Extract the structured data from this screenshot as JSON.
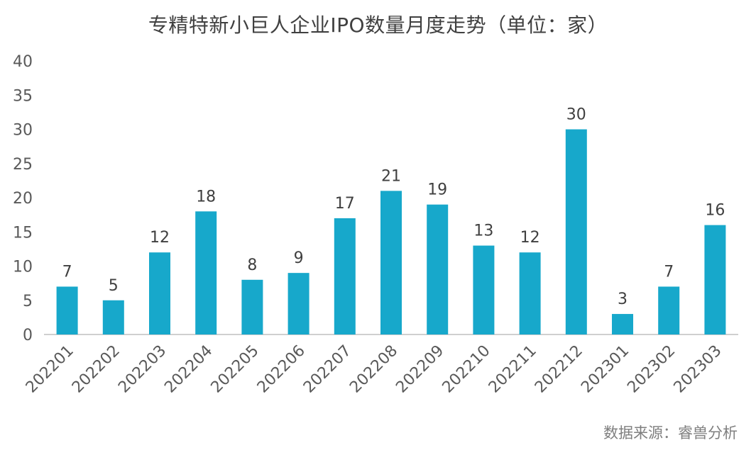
{
  "title": "专精特新小巨人企业IPO数量月度走势（单位：家）",
  "source": "数据来源：睿兽分析",
  "colors": {
    "bar": "#17a8cb",
    "axis": "#bfbfbf",
    "text": "#404040"
  },
  "chart_data": {
    "type": "bar",
    "title": "专精特新小巨人企业IPO数量月度走势（单位：家）",
    "xlabel": "",
    "ylabel": "",
    "categories": [
      "202201",
      "202202",
      "202203",
      "202204",
      "202205",
      "202206",
      "202207",
      "202208",
      "202209",
      "202210",
      "202211",
      "202212",
      "202301",
      "202302",
      "202303"
    ],
    "values": [
      7,
      5,
      12,
      18,
      8,
      9,
      17,
      21,
      19,
      13,
      12,
      30,
      3,
      7,
      16
    ],
    "ylim": [
      0,
      40
    ],
    "yticks": [
      0,
      5,
      10,
      15,
      20,
      25,
      30,
      35,
      40
    ],
    "grid": false,
    "legend": "none",
    "data_labels": true
  }
}
